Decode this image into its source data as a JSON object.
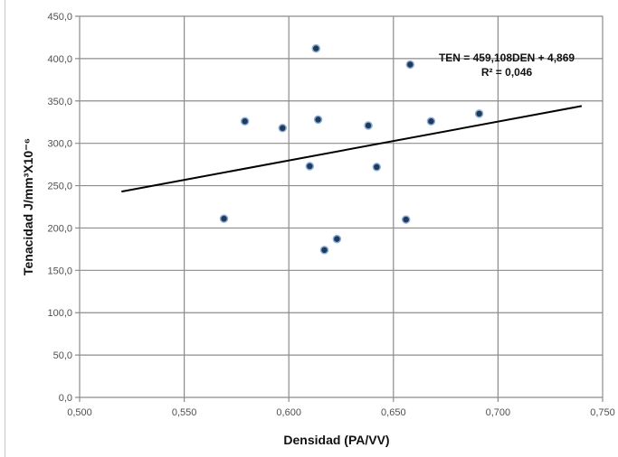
{
  "chart_data": {
    "type": "scatter",
    "xlabel": "Densidad (PA/VV)",
    "ylabel": "Tenacidad J/mm³X10⁻⁶",
    "xlim": [
      0.5,
      0.75
    ],
    "ylim": [
      0,
      450
    ],
    "x_ticks": [
      "0,500",
      "0,550",
      "0,600",
      "0,650",
      "0,700",
      "0,750"
    ],
    "y_ticks": [
      "0,0",
      "50,0",
      "100,0",
      "150,0",
      "200,0",
      "250,0",
      "300,0",
      "350,0",
      "400,0",
      "450,0"
    ],
    "grid": true,
    "points": [
      {
        "x": 0.569,
        "y": 211
      },
      {
        "x": 0.579,
        "y": 326
      },
      {
        "x": 0.597,
        "y": 318
      },
      {
        "x": 0.61,
        "y": 273
      },
      {
        "x": 0.613,
        "y": 412
      },
      {
        "x": 0.614,
        "y": 328
      },
      {
        "x": 0.617,
        "y": 174
      },
      {
        "x": 0.623,
        "y": 187
      },
      {
        "x": 0.638,
        "y": 321
      },
      {
        "x": 0.642,
        "y": 272
      },
      {
        "x": 0.656,
        "y": 210
      },
      {
        "x": 0.658,
        "y": 393
      },
      {
        "x": 0.668,
        "y": 326
      },
      {
        "x": 0.691,
        "y": 335
      }
    ],
    "trendline": {
      "x": [
        0.52,
        0.74
      ],
      "y": [
        243,
        344
      ]
    },
    "annotations": [
      "TEN = 459,108DEN + 4,869",
      "R² = 0,046"
    ],
    "colors": {
      "marker_fill": "#1f3a5a",
      "marker_edge": "#8fb0d8",
      "grid": "#8c8c8c",
      "trend": "#000000"
    }
  }
}
